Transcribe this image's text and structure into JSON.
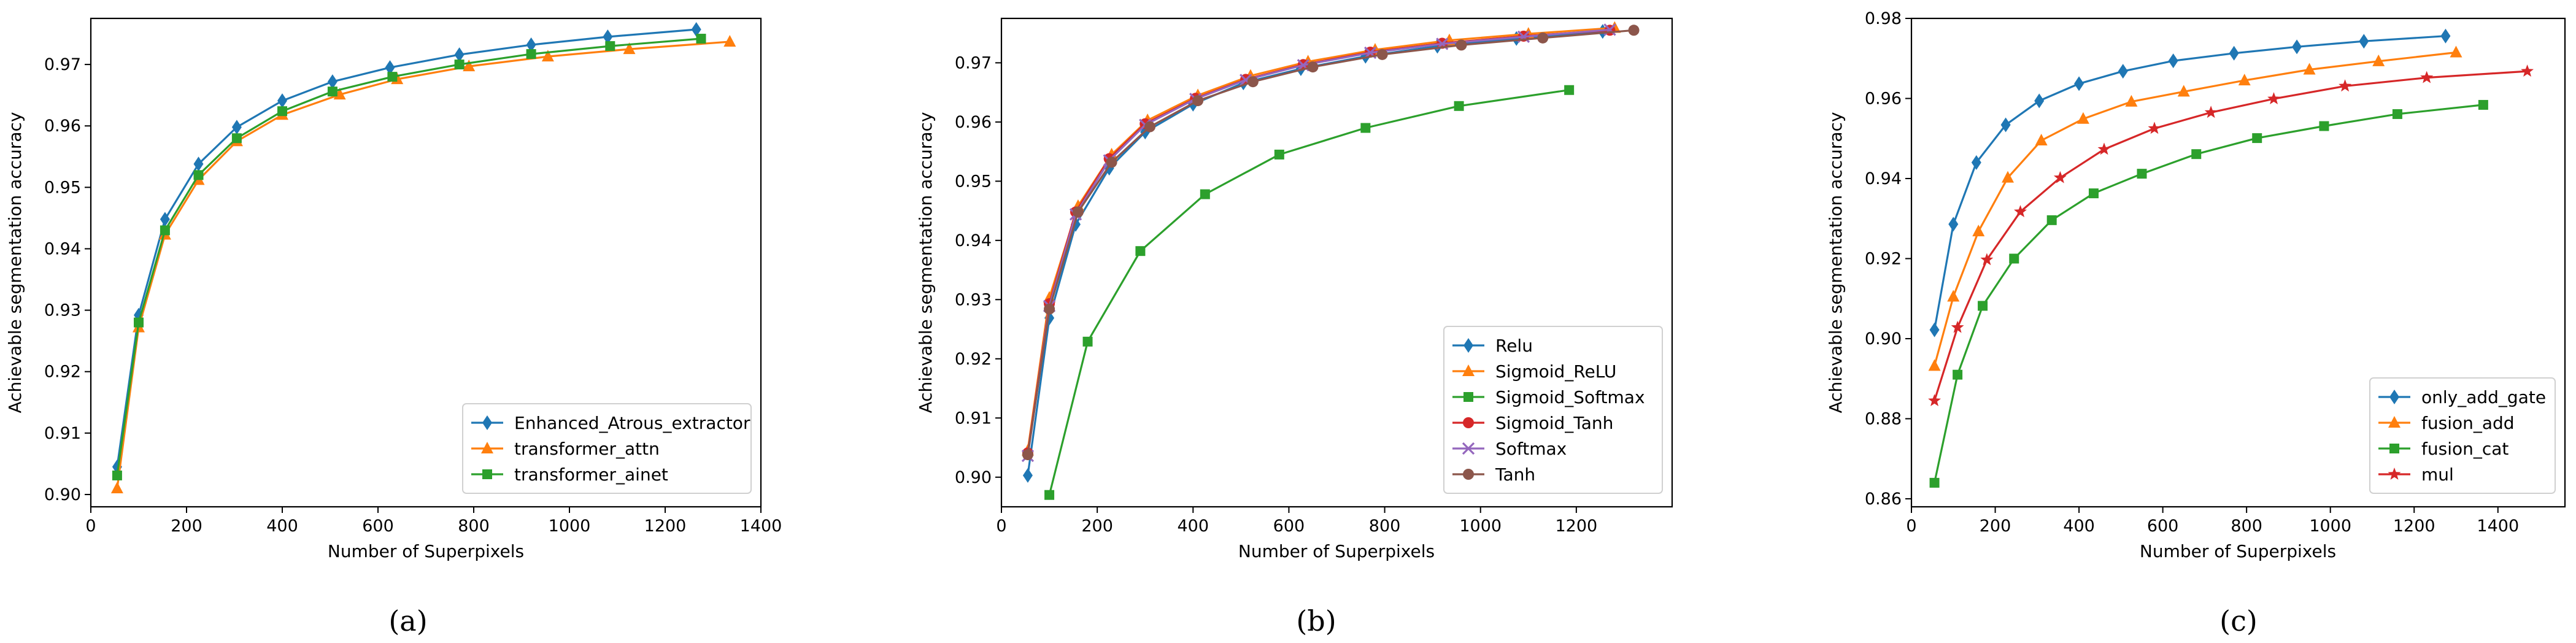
{
  "chart_data": [
    {
      "type": "line",
      "caption": "(a)",
      "xlabel": "Number of Superpixels",
      "ylabel": "Achievable segmentation accuracy",
      "xlim": [
        0,
        1400
      ],
      "ylim": [
        0.898,
        0.9775
      ],
      "xticks": [
        0,
        200,
        400,
        600,
        800,
        1000,
        1200,
        1400
      ],
      "xtick_labels": [
        "0",
        "200",
        "400",
        "600",
        "800",
        "1000",
        "1200",
        "1400"
      ],
      "yticks": [
        0.9,
        0.91,
        0.92,
        0.93,
        0.94,
        0.95,
        0.96,
        0.97
      ],
      "ytick_labels": [
        "0.90",
        "0.91",
        "0.92",
        "0.93",
        "0.94",
        "0.95",
        "0.96",
        "0.97"
      ],
      "legend_position": "lower-right",
      "series": [
        {
          "name": "Enhanced_Atrous_extractor",
          "color": "#1f77b4",
          "marker": "diamond",
          "x": [
            55,
            100,
            155,
            225,
            305,
            400,
            505,
            625,
            770,
            920,
            1080,
            1265
          ],
          "y": [
            0.9045,
            0.9292,
            0.9448,
            0.9538,
            0.9598,
            0.9641,
            0.9672,
            0.9695,
            0.9716,
            0.9732,
            0.9745,
            0.9757
          ]
        },
        {
          "name": "transformer_attn",
          "color": "#ff7f0e",
          "marker": "triangle",
          "x": [
            55,
            100,
            155,
            225,
            305,
            400,
            520,
            640,
            790,
            955,
            1125,
            1335
          ],
          "y": [
            0.901,
            0.9272,
            0.9423,
            0.9512,
            0.9575,
            0.9618,
            0.9651,
            0.9676,
            0.9697,
            0.9713,
            0.9725,
            0.9737
          ]
        },
        {
          "name": "transformer_ainet",
          "color": "#2ca02c",
          "marker": "square",
          "x": [
            55,
            100,
            155,
            225,
            305,
            400,
            505,
            630,
            770,
            920,
            1085,
            1275
          ],
          "y": [
            0.9031,
            0.928,
            0.943,
            0.952,
            0.958,
            0.9624,
            0.9656,
            0.968,
            0.97,
            0.9717,
            0.973,
            0.9742
          ]
        }
      ]
    },
    {
      "type": "line",
      "caption": "(b)",
      "xlabel": "Number of Superpixels",
      "ylabel": "Achievable segmentation accuracy",
      "xlim": [
        0,
        1400
      ],
      "ylim": [
        0.895,
        0.9775
      ],
      "xticks": [
        0,
        200,
        400,
        600,
        800,
        1000,
        1200
      ],
      "xtick_labels": [
        "0",
        "200",
        "400",
        "600",
        "800",
        "1000",
        "1200"
      ],
      "yticks": [
        0.9,
        0.91,
        0.92,
        0.93,
        0.94,
        0.95,
        0.96,
        0.97
      ],
      "ytick_labels": [
        "0.90",
        "0.91",
        "0.92",
        "0.93",
        "0.94",
        "0.95",
        "0.96",
        "0.97"
      ],
      "legend_position": "lower-right",
      "series": [
        {
          "name": "Relu",
          "color": "#1f77b4",
          "marker": "diamond",
          "x": [
            55,
            100,
            155,
            225,
            300,
            400,
            505,
            625,
            760,
            910,
            1075,
            1255
          ],
          "y": [
            0.9003,
            0.9269,
            0.9427,
            0.9522,
            0.9583,
            0.963,
            0.9666,
            0.969,
            0.9711,
            0.9728,
            0.9741,
            0.9753
          ]
        },
        {
          "name": "Sigmoid_ReLU",
          "color": "#ff7f0e",
          "marker": "triangle",
          "x": [
            55,
            100,
            160,
            230,
            305,
            410,
            520,
            640,
            780,
            935,
            1100,
            1280
          ],
          "y": [
            0.9045,
            0.9303,
            0.9458,
            0.9545,
            0.9603,
            0.9645,
            0.9678,
            0.9702,
            0.9722,
            0.9738,
            0.9749,
            0.9759
          ]
        },
        {
          "name": "Sigmoid_Softmax",
          "color": "#2ca02c",
          "marker": "square",
          "x": [
            100,
            180,
            290,
            425,
            580,
            760,
            955,
            1185
          ],
          "y": [
            0.897,
            0.9229,
            0.9382,
            0.9478,
            0.9545,
            0.959,
            0.9627,
            0.9654
          ]
        },
        {
          "name": "Sigmoid_Tanh",
          "color": "#d62728",
          "marker": "circle",
          "x": [
            55,
            100,
            155,
            225,
            300,
            405,
            510,
            630,
            770,
            920,
            1090,
            1270
          ],
          "y": [
            0.9041,
            0.9293,
            0.9448,
            0.9538,
            0.9597,
            0.964,
            0.9672,
            0.9697,
            0.9718,
            0.9733,
            0.9745,
            0.9755
          ]
        },
        {
          "name": "Softmax",
          "color": "#9467bd",
          "marker": "x",
          "x": [
            55,
            100,
            155,
            225,
            300,
            405,
            510,
            630,
            770,
            920,
            1090,
            1270
          ],
          "y": [
            0.9036,
            0.9289,
            0.9444,
            0.9535,
            0.9595,
            0.9639,
            0.9671,
            0.9696,
            0.9717,
            0.9732,
            0.9744,
            0.9756
          ]
        },
        {
          "name": "Tanh",
          "color": "#8c564b",
          "marker": "circle",
          "x": [
            55,
            100,
            160,
            230,
            310,
            410,
            525,
            650,
            795,
            960,
            1130,
            1320
          ],
          "y": [
            0.9038,
            0.9284,
            0.9448,
            0.9532,
            0.9592,
            0.9636,
            0.9668,
            0.9693,
            0.9714,
            0.973,
            0.9742,
            0.9755
          ]
        }
      ]
    },
    {
      "type": "line",
      "caption": "(c)",
      "xlabel": "Number of Superpixels",
      "ylabel": "Achievable segmentation accuracy",
      "xlim": [
        0,
        1560
      ],
      "ylim": [
        0.858,
        0.98
      ],
      "xticks": [
        0,
        200,
        400,
        600,
        800,
        1000,
        1200,
        1400
      ],
      "xtick_labels": [
        "0",
        "200",
        "400",
        "600",
        "800",
        "1000",
        "1200",
        "1400"
      ],
      "yticks": [
        0.86,
        0.88,
        0.9,
        0.92,
        0.94,
        0.96,
        0.98
      ],
      "ytick_labels": [
        "0.86",
        "0.88",
        "0.90",
        "0.92",
        "0.94",
        "0.96",
        "0.98"
      ],
      "legend_position": "lower-right",
      "series": [
        {
          "name": "only_add_gate",
          "color": "#1f77b4",
          "marker": "diamond",
          "x": [
            55,
            100,
            155,
            225,
            305,
            400,
            505,
            625,
            770,
            920,
            1080,
            1275
          ],
          "y": [
            0.9022,
            0.9286,
            0.944,
            0.9534,
            0.9594,
            0.9637,
            0.9668,
            0.9694,
            0.9713,
            0.9729,
            0.9743,
            0.9756
          ]
        },
        {
          "name": "fusion_add",
          "color": "#ff7f0e",
          "marker": "triangle",
          "x": [
            55,
            100,
            160,
            230,
            310,
            410,
            525,
            650,
            795,
            950,
            1115,
            1300
          ],
          "y": [
            0.8932,
            0.9105,
            0.9268,
            0.9402,
            0.9495,
            0.9549,
            0.9592,
            0.9617,
            0.9645,
            0.9672,
            0.9693,
            0.9715
          ]
        },
        {
          "name": "fusion_cat",
          "color": "#2ca02c",
          "marker": "square",
          "x": [
            55,
            110,
            170,
            245,
            335,
            435,
            550,
            680,
            825,
            985,
            1160,
            1365
          ],
          "y": [
            0.864,
            0.891,
            0.9082,
            0.92,
            0.9296,
            0.9363,
            0.9412,
            0.9461,
            0.9501,
            0.9531,
            0.9561,
            0.9584
          ]
        },
        {
          "name": "mul",
          "color": "#d62728",
          "marker": "star",
          "x": [
            55,
            110,
            180,
            260,
            355,
            460,
            580,
            715,
            865,
            1035,
            1230,
            1470
          ],
          "y": [
            0.8845,
            0.9028,
            0.9197,
            0.9317,
            0.9402,
            0.9473,
            0.9525,
            0.9565,
            0.9599,
            0.9631,
            0.9652,
            0.9668
          ]
        }
      ]
    }
  ]
}
